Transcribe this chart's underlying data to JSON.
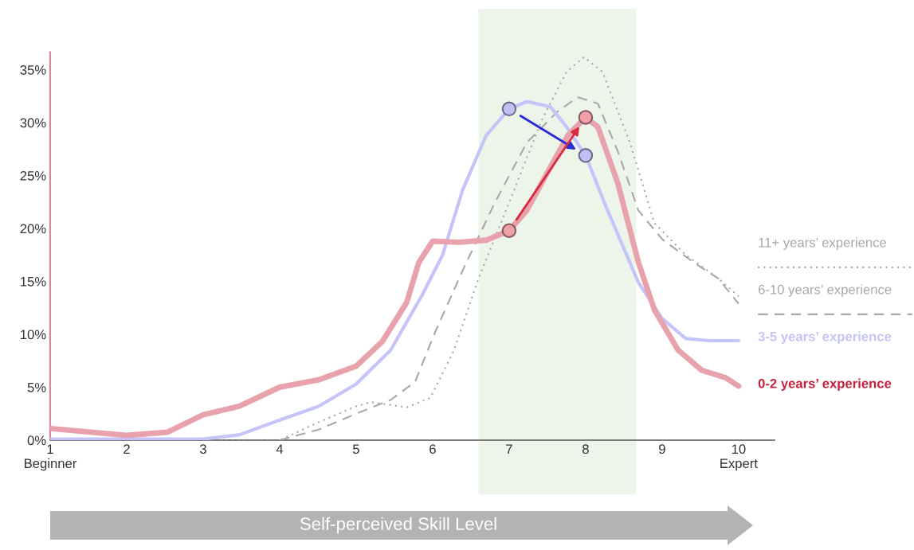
{
  "chart_data": {
    "type": "line",
    "xlabel": "Self-perceived Skill Level",
    "xlim": [
      1,
      10.47
    ],
    "ylim": [
      0,
      36.7
    ],
    "xticks": [
      {
        "value": 1,
        "label": "1\nBeginner"
      },
      2,
      3,
      4,
      5,
      6,
      7,
      8,
      9,
      {
        "value": 10,
        "label": "10\nExpert"
      }
    ],
    "yticks": [
      {
        "value": 0,
        "label": "0%"
      },
      {
        "value": 5,
        "label": "5%"
      },
      {
        "value": 10,
        "label": "10%"
      },
      {
        "value": 15,
        "label": "15%"
      },
      {
        "value": 20,
        "label": "20%"
      },
      {
        "value": 25,
        "label": "25%"
      },
      {
        "value": 30,
        "label": "30%"
      },
      {
        "value": 35,
        "label": "35%"
      }
    ],
    "grid": false,
    "legend": "right",
    "bands": [
      {
        "axis": "x",
        "from": 6.6,
        "to": 8.66,
        "color": "#edf5ea"
      }
    ],
    "series": [
      {
        "name": "11+ years’ experience",
        "color": "#a8a8a8",
        "line_style": "dotted",
        "x": [
          2.5,
          3.5,
          4,
          4.51,
          5,
          5.19,
          5.66,
          5.97,
          6.28,
          6.6,
          7.02,
          7.43,
          7.75,
          7.98,
          8.22,
          8.58,
          8.9,
          9.31,
          9.73,
          10
        ],
        "values": [
          0,
          0,
          0,
          1.7,
          3.2,
          3.6,
          3.1,
          4.0,
          8.5,
          15.3,
          22.8,
          30.3,
          34.8,
          36.2,
          34.8,
          28.1,
          20.5,
          17.5,
          15.3,
          13.6
        ]
      },
      {
        "name": "6-10 years’ experience",
        "color": "#a8a8a8",
        "line_style": "dashed",
        "x": [
          4,
          4.51,
          5,
          5.45,
          5.77,
          6.02,
          6.39,
          6.81,
          7.23,
          7.64,
          7.9,
          8.16,
          8.42,
          8.69,
          9,
          9.41,
          9.73,
          10
        ],
        "values": [
          0,
          1.0,
          2.5,
          3.8,
          5.5,
          10.0,
          16.0,
          22.4,
          28.1,
          31.1,
          32.4,
          31.8,
          27.3,
          21.7,
          19.0,
          16.8,
          15.3,
          12.9
        ]
      },
      {
        "name": "3-5 years’ experience",
        "color": "#c4c4f8",
        "line_style": "solid",
        "x": [
          1,
          3,
          3.47,
          4,
          4.51,
          5,
          5.45,
          5.87,
          6.13,
          6.39,
          6.7,
          7,
          7.23,
          7.54,
          7.75,
          8,
          8.27,
          8.69,
          9,
          9.31,
          9.62,
          10
        ],
        "values": [
          0.1,
          0.1,
          0.5,
          1.9,
          3.2,
          5.3,
          8.5,
          13.8,
          17.5,
          23.6,
          28.8,
          31.3,
          32.0,
          31.5,
          29.6,
          26.9,
          22.0,
          14.9,
          11.5,
          9.6,
          9.4,
          9.4
        ]
      },
      {
        "name": "0-2 years’ experience",
        "color": "#e8a2ac",
        "line_style": "solid",
        "x": [
          1,
          2,
          2.53,
          3,
          3.47,
          4,
          4.51,
          5,
          5.34,
          5.66,
          5.82,
          6,
          6.34,
          6.7,
          7,
          7.23,
          7.54,
          7.77,
          8,
          8.16,
          8.42,
          8.69,
          8.9,
          9.21,
          9.52,
          9.83,
          10
        ],
        "values": [
          1.1,
          0.45,
          0.75,
          2.4,
          3.2,
          5.0,
          5.7,
          7.0,
          9.3,
          13.0,
          16.8,
          18.8,
          18.7,
          18.9,
          19.8,
          21.7,
          25.8,
          28.8,
          30.5,
          29.6,
          24.3,
          16.8,
          12.3,
          8.5,
          6.6,
          5.9,
          5.1
        ]
      },
      {
        "type": "scatter",
        "marker": "circle",
        "color": "#c0c0f5",
        "x": [
          7,
          8
        ],
        "values": [
          31.3,
          26.9
        ]
      },
      {
        "type": "scatter",
        "marker": "circle",
        "color": "#f0a0a8",
        "x": [
          7,
          8
        ],
        "values": [
          19.8,
          30.5
        ]
      }
    ]
  }
}
